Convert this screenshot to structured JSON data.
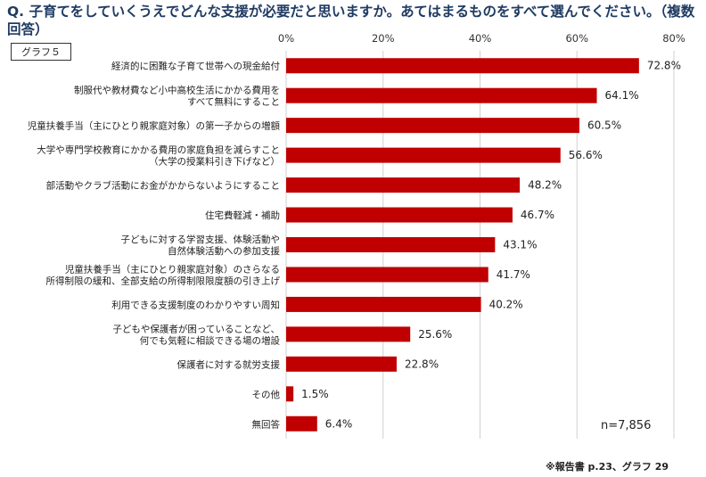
{
  "question": "Q. 子育てをしていくうえでどんな支援が必要だと思いますか。あてはまるものをすべて選んでください。（複数回答）",
  "graph_label": "グラフ５",
  "sample_note": "n=7,856",
  "source_note": "※報告書 p.23、グラフ 29",
  "colors": {
    "bar": "#c00000",
    "grid": "#d0d0d0",
    "title": "#1f3b63"
  },
  "chart_data": {
    "type": "bar",
    "orientation": "horizontal",
    "categories": [
      [
        "経済的に困難な子育て世帯への現金給付"
      ],
      [
        "制服代や教材費など小中高校生活にかかる費用を",
        "すべて無料にすること"
      ],
      [
        "児童扶養手当（主にひとり親家庭対象）の第一子からの増額"
      ],
      [
        "大学や専門学校教育にかかる費用の家庭負担を減らすこと",
        "（大学の授業料引き下げなど）"
      ],
      [
        "部活動やクラブ活動にお金がかからないようにすること"
      ],
      [
        "住宅費軽減・補助"
      ],
      [
        "子どもに対する学習支援、体験活動や",
        "自然体験活動への参加支援"
      ],
      [
        "児童扶養手当（主にひとり親家庭対象）のさらなる",
        "所得制限の緩和、全部支給の所得制限限度額の引き上げ"
      ],
      [
        "利用できる支援制度のわかりやすい周知"
      ],
      [
        "子どもや保護者が困っていることなど、",
        "何でも気軽に相談できる場の増設"
      ],
      [
        "保護者に対する就労支援"
      ],
      [
        "その他"
      ],
      [
        "無回答"
      ]
    ],
    "values": [
      72.8,
      64.1,
      60.5,
      56.6,
      48.2,
      46.7,
      43.1,
      41.7,
      40.2,
      25.6,
      22.8,
      1.5,
      6.4
    ],
    "value_labels": [
      "72.8%",
      "64.1%",
      "60.5%",
      "56.6%",
      "48.2%",
      "46.7%",
      "43.1%",
      "41.7%",
      "40.2%",
      "25.6%",
      "22.8%",
      "1.5%",
      "6.4%"
    ],
    "x_ticks": [
      0,
      20,
      40,
      60,
      80
    ],
    "x_tick_labels": [
      "0%",
      "20%",
      "40%",
      "60%",
      "80%"
    ],
    "xlim": [
      0,
      80
    ],
    "grid": true,
    "legend": "none"
  }
}
